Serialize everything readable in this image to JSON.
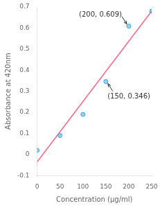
{
  "chart_data": {
    "type": "scatter",
    "xlabel": "Concentration (μg/ml)",
    "ylabel": "Absorbance at 420nm",
    "series": [
      {
        "type": "scatter",
        "x": [
          0,
          50,
          100,
          150,
          200,
          250
        ],
        "values": [
          0.02,
          0.09,
          0.19,
          0.346,
          0.609,
          0.68
        ]
      },
      {
        "type": "line",
        "x": [
          0,
          250
        ],
        "values": [
          -0.0355714285714286,
          0.6805714285714286
        ]
      }
    ],
    "annotations": [
      {
        "text": "(200, 0.609)",
        "x": 200,
        "y": 0.609
      },
      {
        "text": "(150, 0.346)",
        "x": 150,
        "y": 0.346
      }
    ],
    "xlim": [
      0,
      250
    ],
    "xticks": [
      0,
      50,
      100,
      150,
      200,
      250
    ],
    "ylim": [
      -0.1,
      0.7
    ],
    "yticks": [
      -0.1,
      0,
      0.1,
      0.2,
      0.3,
      0.4,
      0.5,
      0.6,
      0.7
    ],
    "grid": false
  }
}
